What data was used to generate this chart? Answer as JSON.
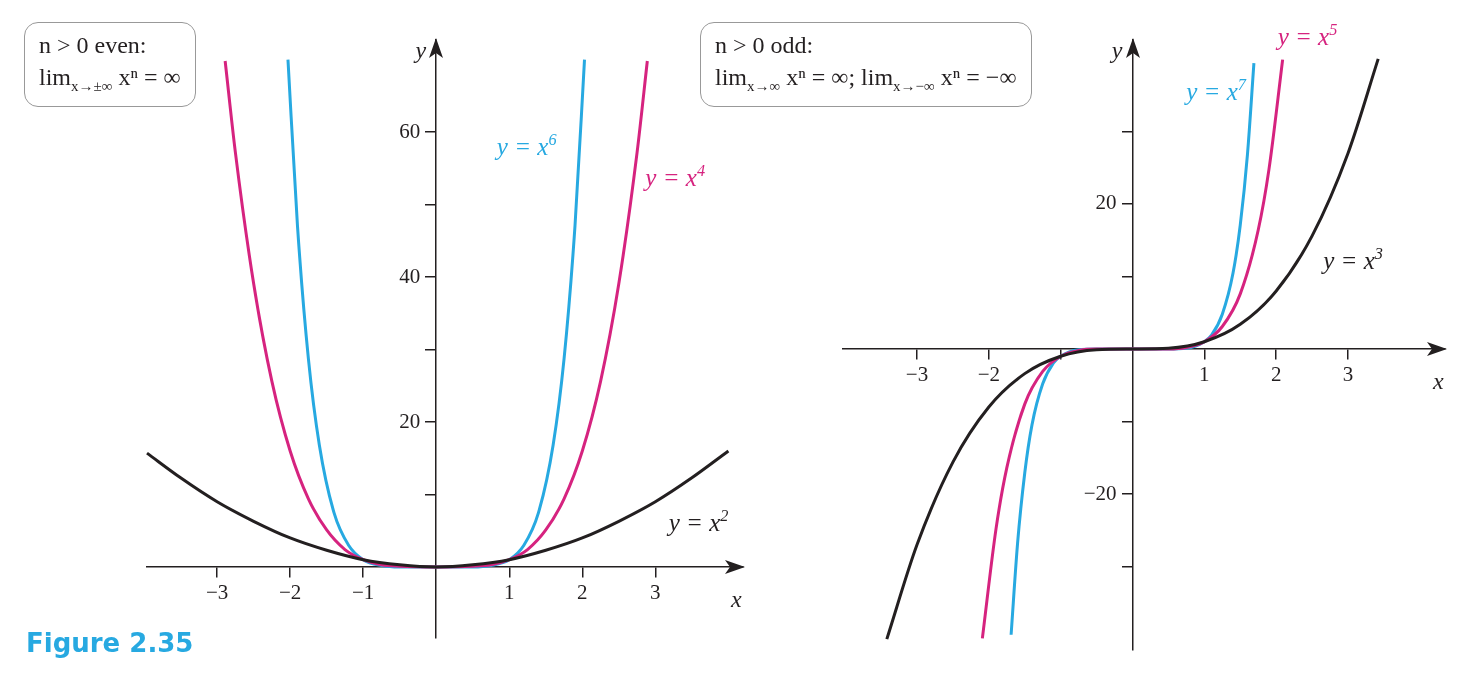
{
  "chart_data": [
    {
      "type": "line",
      "xlabel": "x",
      "ylabel": "y",
      "xlim": [
        -3.96,
        4.2
      ],
      "ylim": [
        -9.8,
        72.7
      ],
      "grid": false,
      "marker": "none",
      "xticks": [
        -3,
        -2,
        -1,
        1,
        2,
        3
      ],
      "yticks": [
        {
          "value": 10,
          "label": null
        },
        20,
        {
          "value": 30,
          "label": null
        },
        40,
        {
          "value": 50,
          "label": null
        },
        60
      ],
      "annotations": [
        "n > 0 even:",
        "lim$_{x→±∞}$ xⁿ = ∞",
        "Figure 2.35"
      ],
      "series": [
        {
          "name": "y = x$^{2}$",
          "color": "#231f20",
          "x": [
            -3.96,
            -3.5,
            -3,
            -2.5,
            -2,
            -1.5,
            -1,
            -0.5,
            0,
            0.5,
            1,
            1.5,
            2,
            2.5,
            3,
            3.5,
            4
          ],
          "values": [
            15.7,
            12.3,
            9,
            6.3,
            4,
            2.3,
            1,
            0.3,
            0,
            0.3,
            1,
            2.3,
            4,
            6.3,
            9,
            12.3,
            16
          ]
        },
        {
          "name": "y = x$^{4}$",
          "color": "#d6237f",
          "x": [
            -2.89,
            -2.75,
            -2.5,
            -2.25,
            -2,
            -1.75,
            -1.5,
            -1.25,
            -1,
            -0.75,
            -0.5,
            0,
            0.5,
            0.75,
            1,
            1.25,
            1.5,
            1.75,
            2,
            2.25,
            2.5,
            2.75,
            2.89
          ],
          "values": [
            69.8,
            57.2,
            39.1,
            25.6,
            16,
            9.4,
            5.1,
            2.4,
            1,
            0.3,
            0.1,
            0,
            0.1,
            0.3,
            1,
            2.4,
            5.1,
            9.4,
            16,
            25.6,
            39.1,
            57.2,
            69.8
          ]
        },
        {
          "name": "y = x$^{6}$",
          "color": "#27a9e1",
          "x": [
            -2.03,
            -1.9,
            -1.75,
            -1.6,
            -1.4,
            -1.2,
            -1,
            -0.75,
            -0.5,
            0,
            0.5,
            0.75,
            1,
            1.2,
            1.4,
            1.6,
            1.75,
            1.9,
            2.03
          ],
          "values": [
            70,
            47.1,
            28.7,
            16.8,
            7.5,
            3,
            1,
            0.2,
            0,
            0,
            0,
            0.2,
            1,
            3,
            7.5,
            16.8,
            28.7,
            47.1,
            70
          ]
        }
      ]
    },
    {
      "type": "line",
      "xlabel": "x",
      "ylabel": "y",
      "xlim": [
        -4.03,
        4.35
      ],
      "ylim": [
        -41.5,
        42.6
      ],
      "grid": false,
      "marker": "none",
      "xticks": [
        -3,
        -2,
        {
          "value": -1,
          "label": null
        },
        1,
        2,
        3
      ],
      "yticks": [
        {
          "value": -30,
          "label": null
        },
        -20,
        {
          "value": -10,
          "label": null
        },
        {
          "value": 10,
          "label": null
        },
        20,
        {
          "value": 30,
          "label": null
        }
      ],
      "annotations": [
        "n > 0 odd:",
        "lim$_{x→∞}$ xⁿ = ∞; lim$_{x→−∞}$ xⁿ = −∞"
      ],
      "series": [
        {
          "name": "y = x$^{3}$",
          "color": "#231f20",
          "x": [
            -3.42,
            -3,
            -2.5,
            -2,
            -1.5,
            -1,
            -0.5,
            0,
            0.5,
            1,
            1.5,
            2,
            2.5,
            3,
            3.42
          ],
          "values": [
            -40,
            -27,
            -15.6,
            -8,
            -3.4,
            -1,
            -0.1,
            0,
            0.1,
            1,
            3.4,
            8,
            15.6,
            27,
            40
          ]
        },
        {
          "name": "y = x$^{5}$",
          "color": "#d6237f",
          "x": [
            -2.09,
            -1.9,
            -1.75,
            -1.5,
            -1.25,
            -1,
            -0.75,
            -0.5,
            0,
            0.5,
            0.75,
            1,
            1.25,
            1.5,
            1.75,
            1.9,
            2.09
          ],
          "values": [
            -39.9,
            -24.8,
            -16.4,
            -7.6,
            -3.1,
            -1,
            -0.2,
            0,
            0,
            0,
            0.2,
            1,
            3.1,
            7.6,
            16.4,
            24.8,
            39.9
          ]
        },
        {
          "name": "y = x$^{7}$",
          "color": "#27a9e1",
          "x": [
            -1.69,
            -1.6,
            -1.5,
            -1.4,
            -1.25,
            -1.1,
            -1,
            -0.75,
            -0.5,
            0,
            0.5,
            0.75,
            1,
            1.1,
            1.25,
            1.4,
            1.5,
            1.6,
            1.69
          ],
          "values": [
            -39.4,
            -26.8,
            -17.1,
            -10.5,
            -4.8,
            -1.9,
            -1,
            -0.1,
            0,
            0,
            0,
            0.1,
            1,
            1.9,
            4.8,
            10.5,
            17.1,
            26.8,
            39.4
          ]
        }
      ]
    }
  ]
}
